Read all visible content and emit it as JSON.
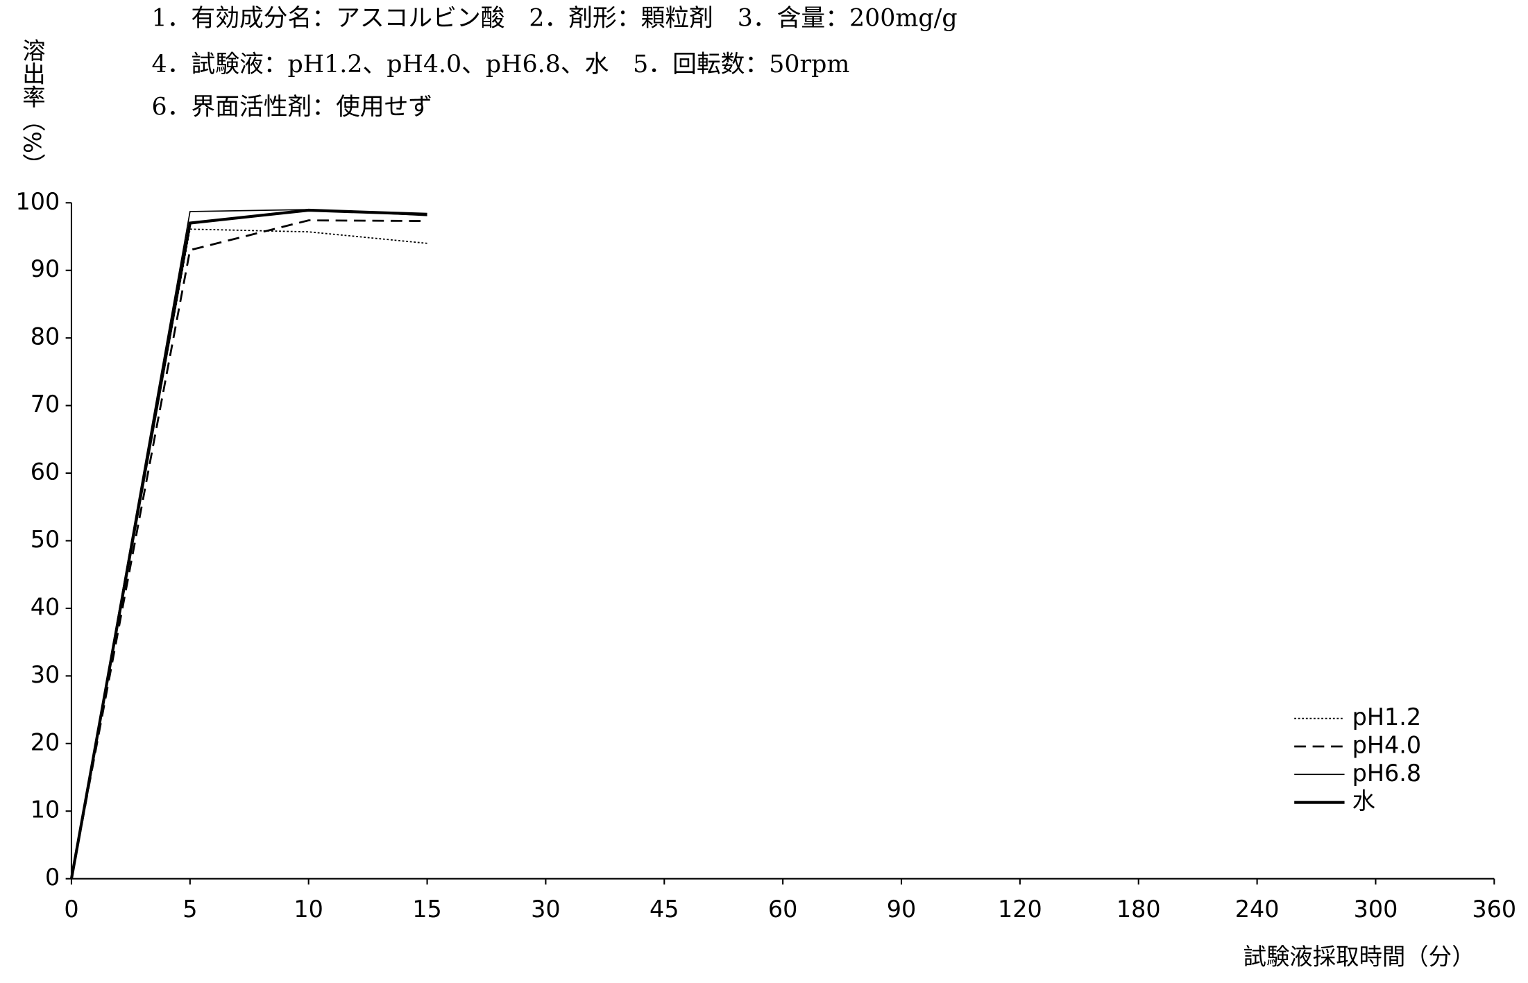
{
  "chart_data": {
    "type": "line",
    "annotations": [
      "1．有効成分名：アスコルビン酸　2．剤形：顆粒剤　3．含量：200mg/g",
      "4．試験液：pH1.2、pH4.0、pH6.8、水　5．回転数：50rpm",
      "6．界面活性剤：使用せず"
    ],
    "y_label": "溶出率（%）",
    "x_label": "試験液採取時間（分）",
    "categories": [
      "0",
      "5",
      "10",
      "15",
      "30",
      "45",
      "60",
      "90",
      "120",
      "180",
      "240",
      "300",
      "360"
    ],
    "ylim": [
      0,
      100
    ],
    "yticks": [
      0,
      10,
      20,
      30,
      40,
      50,
      60,
      70,
      80,
      90,
      100
    ],
    "legend": "lower-right",
    "series": [
      {
        "name": "pH1.2",
        "color": "#000000",
        "dash": "dotted",
        "width": 1.3,
        "values": [
          0,
          96.1,
          95.7,
          94.0,
          null,
          null,
          null,
          null,
          null,
          null,
          null,
          null,
          null
        ]
      },
      {
        "name": "pH4.0",
        "color": "#000000",
        "dash": "dashed",
        "width": 2,
        "values": [
          0,
          93.0,
          97.4,
          97.3,
          null,
          null,
          null,
          null,
          null,
          null,
          null,
          null,
          null
        ]
      },
      {
        "name": "pH6.8",
        "color": "#000000",
        "dash": "solid",
        "width": 1.2,
        "values": [
          0,
          98.7,
          99.0,
          98.1,
          null,
          null,
          null,
          null,
          null,
          null,
          null,
          null,
          null
        ]
      },
      {
        "name": "水",
        "color": "#000000",
        "dash": "solid",
        "width": 3,
        "values": [
          0,
          97.0,
          98.9,
          98.3,
          null,
          null,
          null,
          null,
          null,
          null,
          null,
          null,
          null
        ]
      }
    ]
  }
}
